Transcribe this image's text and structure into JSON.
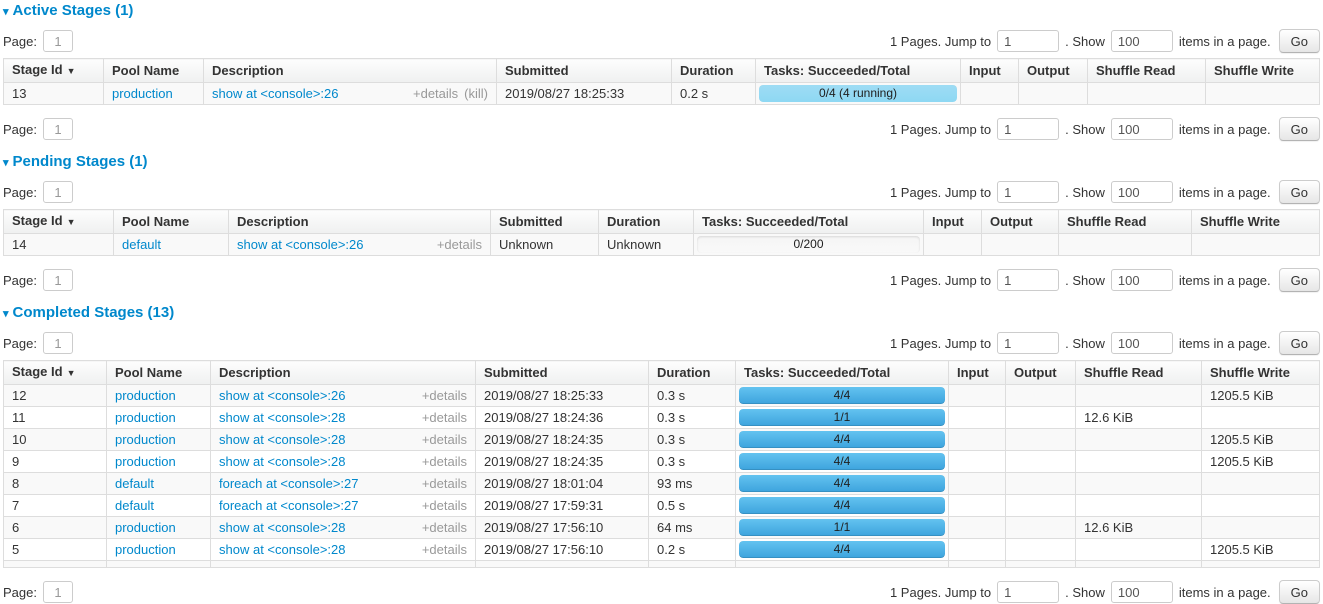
{
  "colors": {
    "link_blue": "#0088cc",
    "completed_bar_top": "#63c3f0",
    "completed_bar_bottom": "#3da3dd",
    "running_bar": "#8ed8f3",
    "header_text": "#333333"
  },
  "icons": {
    "collapse_arrow_icon": "▾",
    "sort_arrow_icon": "▼"
  },
  "pagination": {
    "page_label": "Page:",
    "page_value": "1",
    "pages_text": "1 Pages. Jump to",
    "jump_value": "1",
    "show_label": ". Show",
    "show_value": "100",
    "items_label": "items in a page.",
    "go_label": "Go"
  },
  "sections": [
    {
      "title": "Active Stages (1)",
      "columns": [
        "Stage Id",
        "Pool Name",
        "Description",
        "Submitted",
        "Duration",
        "Tasks: Succeeded/Total",
        "Input",
        "Output",
        "Shuffle Read",
        "Shuffle Write"
      ],
      "rows": [
        {
          "stage_id": "13",
          "pool": "production",
          "desc": "show at <console>:26",
          "details": "+details",
          "kill": "(kill)",
          "submitted": "2019/08/27 18:25:33",
          "duration": "0.2 s",
          "tasks": {
            "text": "0/4 (4 running)",
            "completed": 0,
            "running": 100
          },
          "input": "",
          "output": "",
          "shuffle_read": "",
          "shuffle_write": ""
        }
      ]
    },
    {
      "title": "Pending Stages (1)",
      "columns": [
        "Stage Id",
        "Pool Name",
        "Description",
        "Submitted",
        "Duration",
        "Tasks: Succeeded/Total",
        "Input",
        "Output",
        "Shuffle Read",
        "Shuffle Write"
      ],
      "rows": [
        {
          "stage_id": "14",
          "pool": "default",
          "desc": "show at <console>:26",
          "details": "+details",
          "submitted": "Unknown",
          "duration": "Unknown",
          "tasks": {
            "text": "0/200",
            "completed": 0,
            "running": 0
          },
          "input": "",
          "output": "",
          "shuffle_read": "",
          "shuffle_write": ""
        }
      ]
    },
    {
      "title": "Completed Stages (13)",
      "columns": [
        "Stage Id",
        "Pool Name",
        "Description",
        "Submitted",
        "Duration",
        "Tasks: Succeeded/Total",
        "Input",
        "Output",
        "Shuffle Read",
        "Shuffle Write"
      ],
      "rows": [
        {
          "stage_id": "12",
          "pool": "production",
          "desc": "show at <console>:26",
          "details": "+details",
          "submitted": "2019/08/27 18:25:33",
          "duration": "0.3 s",
          "tasks": {
            "text": "4/4",
            "completed": 100,
            "running": 0
          },
          "input": "",
          "output": "",
          "shuffle_read": "",
          "shuffle_write": "1205.5 KiB"
        },
        {
          "stage_id": "11",
          "pool": "production",
          "desc": "show at <console>:28",
          "details": "+details",
          "submitted": "2019/08/27 18:24:36",
          "duration": "0.3 s",
          "tasks": {
            "text": "1/1",
            "completed": 100,
            "running": 0
          },
          "input": "",
          "output": "",
          "shuffle_read": "12.6 KiB",
          "shuffle_write": ""
        },
        {
          "stage_id": "10",
          "pool": "production",
          "desc": "show at <console>:28",
          "details": "+details",
          "submitted": "2019/08/27 18:24:35",
          "duration": "0.3 s",
          "tasks": {
            "text": "4/4",
            "completed": 100,
            "running": 0
          },
          "input": "",
          "output": "",
          "shuffle_read": "",
          "shuffle_write": "1205.5 KiB"
        },
        {
          "stage_id": "9",
          "pool": "production",
          "desc": "show at <console>:28",
          "details": "+details",
          "submitted": "2019/08/27 18:24:35",
          "duration": "0.3 s",
          "tasks": {
            "text": "4/4",
            "completed": 100,
            "running": 0
          },
          "input": "",
          "output": "",
          "shuffle_read": "",
          "shuffle_write": "1205.5 KiB"
        },
        {
          "stage_id": "8",
          "pool": "default",
          "desc": "foreach at <console>:27",
          "details": "+details",
          "submitted": "2019/08/27 18:01:04",
          "duration": "93 ms",
          "tasks": {
            "text": "4/4",
            "completed": 100,
            "running": 0
          },
          "input": "",
          "output": "",
          "shuffle_read": "",
          "shuffle_write": ""
        },
        {
          "stage_id": "7",
          "pool": "default",
          "desc": "foreach at <console>:27",
          "details": "+details",
          "submitted": "2019/08/27 17:59:31",
          "duration": "0.5 s",
          "tasks": {
            "text": "4/4",
            "completed": 100,
            "running": 0
          },
          "input": "",
          "output": "",
          "shuffle_read": "",
          "shuffle_write": ""
        },
        {
          "stage_id": "6",
          "pool": "production",
          "desc": "show at <console>:28",
          "details": "+details",
          "submitted": "2019/08/27 17:56:10",
          "duration": "64 ms",
          "tasks": {
            "text": "1/1",
            "completed": 100,
            "running": 0
          },
          "input": "",
          "output": "",
          "shuffle_read": "12.6 KiB",
          "shuffle_write": ""
        },
        {
          "stage_id": "5",
          "pool": "production",
          "desc": "show at <console>:28",
          "details": "+details",
          "submitted": "2019/08/27 17:56:10",
          "duration": "0.2 s",
          "tasks": {
            "text": "4/4",
            "completed": 100,
            "running": 0
          },
          "input": "",
          "output": "",
          "shuffle_read": "",
          "shuffle_write": "1205.5 KiB"
        },
        {
          "partial": true
        }
      ]
    }
  ]
}
